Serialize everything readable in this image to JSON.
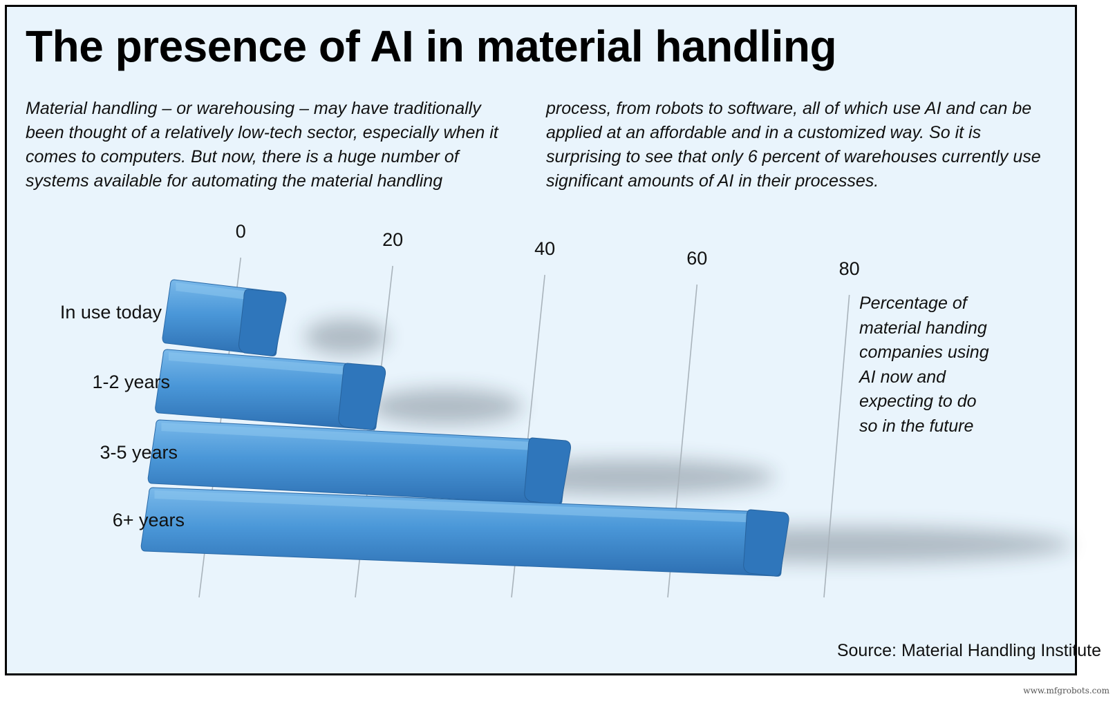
{
  "title": "The presence of AI in material handling",
  "intro": {
    "left": "Material handling – or warehousing – may have traditionally been thought of a relatively low-tech sector, especially when it comes to computers. But now, there is a huge number of systems available for automating the material handling",
    "right": "process, from robots to software, all of which use AI and can be applied at an affordable and in a customized way. So it is surprising to see that only 6 percent of warehouses currently use significant amounts of AI in their processes."
  },
  "note": "Percentage of material handing companies using AI now and expecting to do so in the future",
  "source": "Source: Material Handling Institute",
  "watermark": "www.mfgrobots.com",
  "colors": {
    "background": "#e9f4fc",
    "bar_top": "#5aa7e0",
    "bar_face": "#3e8bd0",
    "bar_end": "#2f73b6"
  },
  "chart_data": {
    "type": "bar",
    "orientation": "horizontal",
    "style": "3d",
    "categories": [
      "In use today",
      "1-2 years",
      "3-5 years",
      "6+ years"
    ],
    "values": [
      6,
      20,
      45,
      74
    ],
    "xlim": [
      0,
      80
    ],
    "xticks": [
      "0",
      "20",
      "40",
      "60",
      "80"
    ],
    "grid": true,
    "title": "",
    "xlabel": "",
    "ylabel": ""
  }
}
